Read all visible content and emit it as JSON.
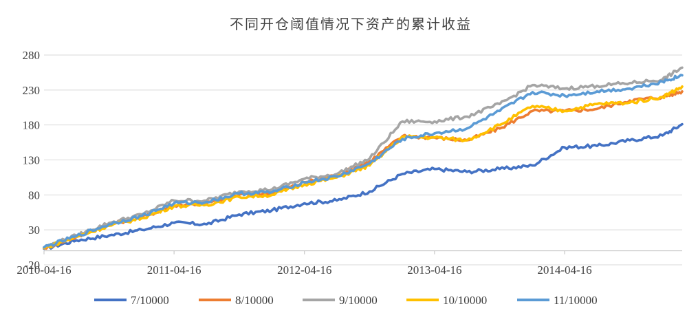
{
  "chart_data": {
    "type": "line",
    "title": "不同开仓阈值情况下资产的累计收益",
    "xlabel": "",
    "ylabel": "",
    "ylim": [
      -20,
      280
    ],
    "y_ticks": [
      -20,
      30,
      80,
      130,
      180,
      230,
      280
    ],
    "y_tick_labels": [
      "-20",
      "30",
      "80",
      "130",
      "180",
      "230",
      "280"
    ],
    "x_tick_labels": [
      "2010-04-16",
      "2011-04-16",
      "2012-04-16",
      "2013-04-16",
      "2014-04-16"
    ],
    "x": [
      "2010-04-16",
      "2010-07-16",
      "2010-10-16",
      "2011-01-16",
      "2011-04-16",
      "2011-07-16",
      "2011-10-16",
      "2012-01-16",
      "2012-04-16",
      "2012-07-16",
      "2012-10-16",
      "2013-01-16",
      "2013-04-16",
      "2013-07-16",
      "2013-10-16",
      "2014-01-16",
      "2014-04-16",
      "2014-07-16",
      "2014-10-16",
      "2015-01-16",
      "2015-03-12"
    ],
    "grid": "horizontal",
    "legend": "bottom",
    "series": [
      {
        "name": "7/10000",
        "color": "#4472C4",
        "values": [
          3,
          15,
          22,
          30,
          40,
          38,
          52,
          58,
          68,
          72,
          85,
          110,
          117,
          113,
          117,
          122,
          148,
          150,
          158,
          165,
          181
        ]
      },
      {
        "name": "8/10000",
        "color": "#ED7D31",
        "values": [
          4,
          20,
          38,
          48,
          65,
          68,
          80,
          82,
          98,
          108,
          128,
          164,
          162,
          158,
          175,
          200,
          200,
          203,
          215,
          220,
          228
        ]
      },
      {
        "name": "9/10000",
        "color": "#A5A5A5",
        "values": [
          5,
          22,
          40,
          52,
          72,
          72,
          85,
          88,
          103,
          110,
          132,
          185,
          185,
          192,
          210,
          237,
          232,
          236,
          240,
          245,
          262
        ]
      },
      {
        "name": "10/10000",
        "color": "#FFC000",
        "values": [
          4,
          20,
          36,
          47,
          64,
          66,
          77,
          80,
          95,
          105,
          122,
          163,
          162,
          158,
          180,
          207,
          200,
          210,
          212,
          220,
          235
        ]
      },
      {
        "name": "11/10000",
        "color": "#5B9BD5",
        "values": [
          5,
          21,
          38,
          50,
          68,
          70,
          82,
          84,
          98,
          106,
          125,
          160,
          168,
          175,
          200,
          227,
          222,
          228,
          232,
          242,
          251
        ]
      }
    ]
  }
}
